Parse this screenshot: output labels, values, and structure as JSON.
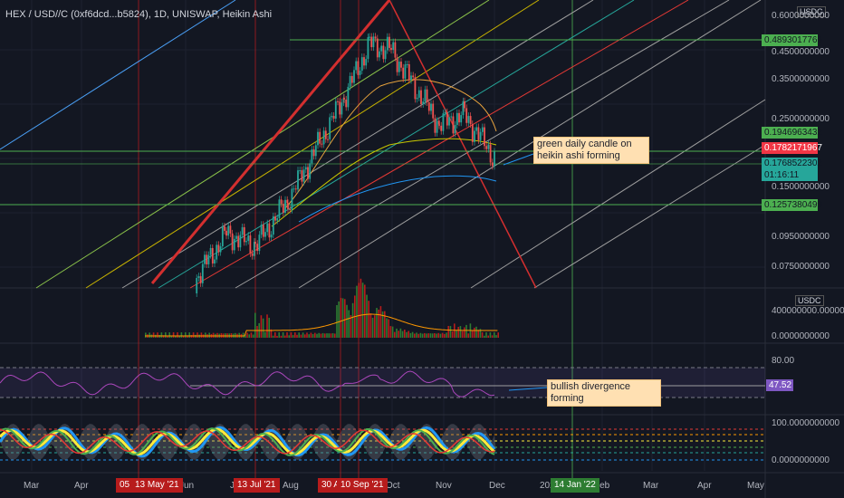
{
  "title": "HEX / USD//C (0xf6dcd...b5824), 1D, UNISWAP, Heikin Ashi",
  "currency": "USDC",
  "colors": {
    "background": "#131722",
    "up": "#26a69a",
    "down": "#ef5350",
    "volume_up": "#2e7d32",
    "volume_down": "#b71c1c",
    "rsi": "#9c27b0",
    "green_level": "#4caf50",
    "red_level": "#f23645",
    "blue_level": "#2196f3",
    "annotation": "#ffe0b2"
  },
  "price_axis": {
    "ticks": [
      "0.6000000000",
      "0.4500000000",
      "0.3500000000",
      "0.2500000000",
      "0.1500000000",
      "0.0950000000",
      "0.0750000000"
    ],
    "tags": {
      "resistance": "0.4893017766",
      "price_a": "0.1946963432",
      "price_b": "0.1782171967",
      "last_price": "0.1768522302",
      "countdown": "01:16:11",
      "support": "0.1257380499"
    }
  },
  "volume_axis": {
    "ticks": [
      "400000000.0000000000",
      "0.0000000000"
    ]
  },
  "rsi_axis": {
    "ticks": [
      "80.00",
      "47.52"
    ]
  },
  "osc_axis": {
    "ticks": [
      "100.0000000000",
      "0.0000000000"
    ]
  },
  "annotations": {
    "candle_note": "green daily candle on heikin ashi forming",
    "divergence_note": "bullish divergence forming"
  },
  "time_axis": {
    "labels": [
      "Mar",
      "Apr",
      "Jun",
      "Ju",
      "Aug",
      "Oct",
      "Nov",
      "Dec",
      "202",
      "Feb",
      "Mar",
      "Apr",
      "May"
    ],
    "highlighted": [
      "05",
      "13 May '21",
      "13 Jul '21",
      "30 A",
      "10 Sep '21",
      "14 Jan '22"
    ]
  },
  "chart_data": {
    "type": "candlestick",
    "title": "HEX / USD//C (0xf6dcd...b5824), 1D, UNISWAP, Heikin Ashi",
    "y_scale": "log",
    "ylim": [
      0.065,
      0.62
    ],
    "price_path": {
      "x": [
        "May '21",
        "mid Jun '21",
        "13 Jul '21",
        "Aug '21",
        "10 Sep '21",
        "late Sep '21",
        "Oct '21",
        "early Nov '21",
        "mid Nov '21",
        "Dec '21"
      ],
      "close": [
        0.068,
        0.1,
        0.09,
        0.13,
        0.3,
        0.46,
        0.44,
        0.24,
        0.26,
        0.18
      ]
    },
    "last_price": 0.1768522302,
    "levels": [
      {
        "value": 0.4893017766,
        "color": "green"
      },
      {
        "value": 0.1946963432,
        "color": "green"
      },
      {
        "value": 0.1782171967,
        "color": "red"
      },
      {
        "value": 0.1257380499,
        "color": "green"
      }
    ],
    "volume_peak": 400000000,
    "rsi": {
      "upper": 80,
      "last": 47.52
    },
    "oscillator_range": [
      0,
      100
    ]
  }
}
